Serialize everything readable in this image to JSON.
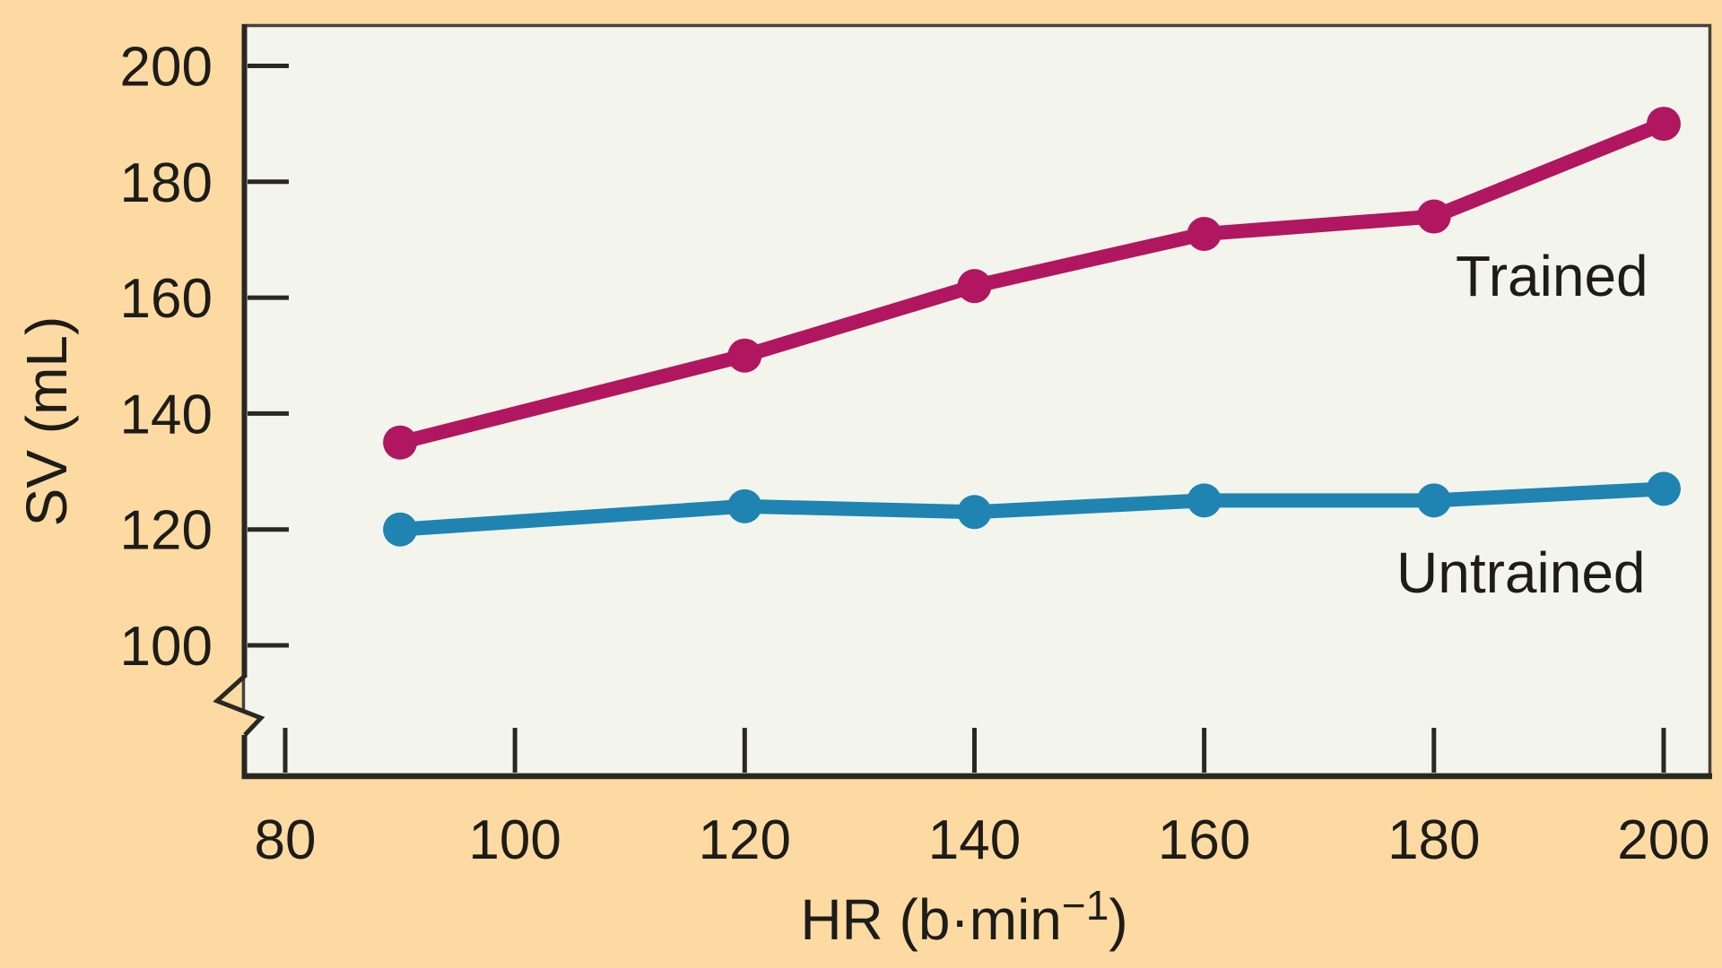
{
  "figure": {
    "background_color": "#FCDAA2",
    "plot_background_color": "#F3F5EC",
    "frame_color": "#45423A",
    "axis_color": "#2A2822",
    "text_color": "#1D1C18"
  },
  "chart_data": {
    "type": "line",
    "x": [
      90,
      120,
      140,
      160,
      180,
      200
    ],
    "series": [
      {
        "name": "Trained",
        "color": "#B01760",
        "values": [
          135,
          150,
          162,
          171,
          174,
          190
        ]
      },
      {
        "name": "Untrained",
        "color": "#1F84B2",
        "values": [
          120,
          124,
          123,
          125,
          125,
          127
        ]
      }
    ],
    "title": "",
    "xlabel": "HR (b·min⁻¹)",
    "xlabel_parts": {
      "base": "HR (b·min",
      "sup": "−1",
      "close": ")"
    },
    "ylabel": "SV (mL)",
    "x_ticks": [
      80,
      100,
      120,
      140,
      160,
      180,
      200
    ],
    "y_ticks": [
      200,
      180,
      160,
      140,
      120,
      100
    ],
    "xlim": [
      80,
      204
    ],
    "ylim_displayed": [
      100,
      200
    ],
    "y_axis_break_below": 100,
    "grid": false,
    "legend": "inline-labels-on-lines"
  }
}
